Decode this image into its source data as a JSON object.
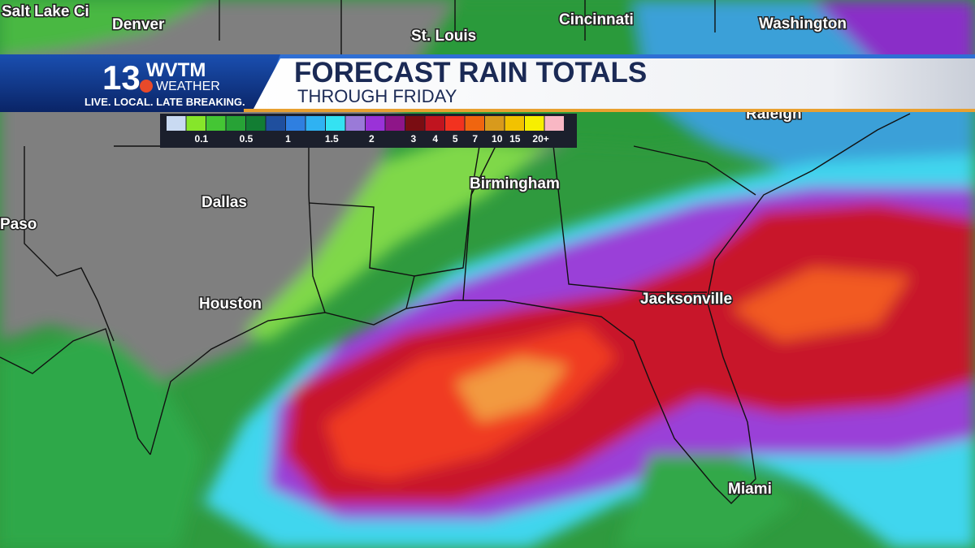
{
  "header": {
    "logo_number": "13",
    "logo_station": "WVTM",
    "logo_subtitle": "WEATHER",
    "tagline": "LIVE. LOCAL. LATE BREAKING.",
    "title": "FORECAST RAIN TOTALS",
    "subtitle": "THROUGH FRIDAY"
  },
  "legend": {
    "colors": [
      "#c9daf2",
      "#86e62a",
      "#44c634",
      "#27a236",
      "#127d33",
      "#1f4f9e",
      "#2f7fe0",
      "#2fb2f2",
      "#34e2f2",
      "#9a7ad8",
      "#9a32d8",
      "#8e1588",
      "#7a0d12",
      "#c0141f",
      "#f2321f",
      "#f0650f",
      "#d89a1c",
      "#f2c200",
      "#f7ef00",
      "#f9b7c4"
    ],
    "labels": [
      0.1,
      0.5,
      1,
      1.5,
      2,
      3,
      4,
      5,
      7,
      10,
      15,
      "20+"
    ]
  },
  "cities": [
    "Salt Lake Ci",
    "Denver",
    "St. Louis",
    "Cincinnati",
    "Washington",
    "Raleigh",
    "Dallas",
    "Birmingham",
    "Paso",
    "Houston",
    "Jacksonville",
    "Miami"
  ]
}
